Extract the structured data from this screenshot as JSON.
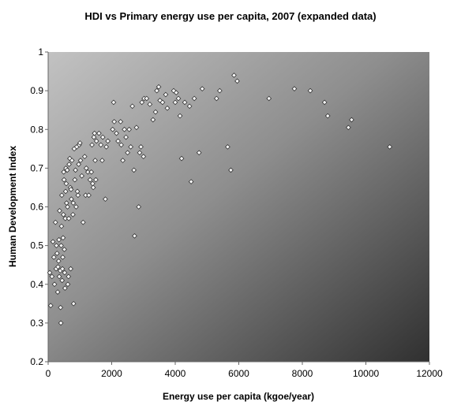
{
  "chart_data": {
    "type": "scatter",
    "title": "HDI vs Primary energy use per capita, 2007 (expanded data)",
    "xlabel": "Energy use per capita (kgoe/year)",
    "ylabel": "Human Development Index",
    "xlim": [
      0,
      12000
    ],
    "ylim": [
      0.2,
      1
    ],
    "xticks": [
      "0",
      "2000",
      "4000",
      "6000",
      "8000",
      "10000",
      "12000"
    ],
    "yticks": [
      "0.2",
      "0.3",
      "0.4",
      "0.5",
      "0.6",
      "0.7",
      "0.8",
      "0.9",
      "1"
    ],
    "grid": false,
    "legend": "none",
    "background": "gradient-gray",
    "marker": "diamond-white",
    "points": [
      [
        50,
        0.43
      ],
      [
        80,
        0.345
      ],
      [
        120,
        0.42
      ],
      [
        150,
        0.51
      ],
      [
        180,
        0.47
      ],
      [
        200,
        0.4
      ],
      [
        230,
        0.56
      ],
      [
        250,
        0.44
      ],
      [
        260,
        0.5
      ],
      [
        280,
        0.48
      ],
      [
        300,
        0.38
      ],
      [
        310,
        0.445
      ],
      [
        330,
        0.46
      ],
      [
        340,
        0.515
      ],
      [
        350,
        0.42
      ],
      [
        360,
        0.59
      ],
      [
        380,
        0.435
      ],
      [
        390,
        0.34
      ],
      [
        400,
        0.3
      ],
      [
        410,
        0.5
      ],
      [
        420,
        0.55
      ],
      [
        430,
        0.63
      ],
      [
        440,
        0.41
      ],
      [
        450,
        0.44
      ],
      [
        460,
        0.47
      ],
      [
        470,
        0.52
      ],
      [
        480,
        0.58
      ],
      [
        490,
        0.69
      ],
      [
        500,
        0.67
      ],
      [
        510,
        0.49
      ],
      [
        520,
        0.43
      ],
      [
        530,
        0.39
      ],
      [
        540,
        0.57
      ],
      [
        550,
        0.64
      ],
      [
        560,
        0.7
      ],
      [
        570,
        0.66
      ],
      [
        580,
        0.61
      ],
      [
        600,
        0.695
      ],
      [
        610,
        0.6
      ],
      [
        620,
        0.4
      ],
      [
        640,
        0.42
      ],
      [
        650,
        0.57
      ],
      [
        660,
        0.71
      ],
      [
        680,
        0.725
      ],
      [
        700,
        0.65
      ],
      [
        710,
        0.44
      ],
      [
        720,
        0.645
      ],
      [
        730,
        0.62
      ],
      [
        750,
        0.72
      ],
      [
        780,
        0.58
      ],
      [
        790,
        0.61
      ],
      [
        800,
        0.35
      ],
      [
        820,
        0.75
      ],
      [
        840,
        0.67
      ],
      [
        860,
        0.695
      ],
      [
        880,
        0.6
      ],
      [
        900,
        0.755
      ],
      [
        920,
        0.64
      ],
      [
        940,
        0.63
      ],
      [
        960,
        0.71
      ],
      [
        980,
        0.76
      ],
      [
        1000,
        0.765
      ],
      [
        1020,
        0.72
      ],
      [
        1060,
        0.68
      ],
      [
        1100,
        0.56
      ],
      [
        1150,
        0.73
      ],
      [
        1180,
        0.63
      ],
      [
        1200,
        0.7
      ],
      [
        1250,
        0.69
      ],
      [
        1280,
        0.63
      ],
      [
        1320,
        0.67
      ],
      [
        1360,
        0.69
      ],
      [
        1380,
        0.76
      ],
      [
        1400,
        0.66
      ],
      [
        1420,
        0.65
      ],
      [
        1440,
        0.78
      ],
      [
        1460,
        0.79
      ],
      [
        1480,
        0.72
      ],
      [
        1500,
        0.67
      ],
      [
        1520,
        0.77
      ],
      [
        1600,
        0.79
      ],
      [
        1660,
        0.76
      ],
      [
        1700,
        0.72
      ],
      [
        1720,
        0.78
      ],
      [
        1800,
        0.62
      ],
      [
        1830,
        0.755
      ],
      [
        1880,
        0.77
      ],
      [
        2030,
        0.8
      ],
      [
        2060,
        0.87
      ],
      [
        2080,
        0.82
      ],
      [
        2150,
        0.79
      ],
      [
        2200,
        0.77
      ],
      [
        2280,
        0.82
      ],
      [
        2300,
        0.76
      ],
      [
        2350,
        0.72
      ],
      [
        2400,
        0.8
      ],
      [
        2450,
        0.78
      ],
      [
        2500,
        0.74
      ],
      [
        2550,
        0.8
      ],
      [
        2600,
        0.755
      ],
      [
        2650,
        0.86
      ],
      [
        2700,
        0.695
      ],
      [
        2720,
        0.525
      ],
      [
        2780,
        0.805
      ],
      [
        2850,
        0.6
      ],
      [
        2880,
        0.74
      ],
      [
        2920,
        0.755
      ],
      [
        2950,
        0.87
      ],
      [
        3000,
        0.73
      ],
      [
        3020,
        0.88
      ],
      [
        3100,
        0.88
      ],
      [
        3200,
        0.865
      ],
      [
        3300,
        0.825
      ],
      [
        3380,
        0.845
      ],
      [
        3420,
        0.9
      ],
      [
        3480,
        0.91
      ],
      [
        3520,
        0.875
      ],
      [
        3600,
        0.87
      ],
      [
        3700,
        0.89
      ],
      [
        3750,
        0.855
      ],
      [
        3950,
        0.9
      ],
      [
        4000,
        0.87
      ],
      [
        4030,
        0.895
      ],
      [
        4100,
        0.88
      ],
      [
        4150,
        0.835
      ],
      [
        4200,
        0.725
      ],
      [
        4300,
        0.87
      ],
      [
        4450,
        0.86
      ],
      [
        4500,
        0.665
      ],
      [
        4600,
        0.88
      ],
      [
        4750,
        0.74
      ],
      [
        4850,
        0.905
      ],
      [
        5300,
        0.88
      ],
      [
        5400,
        0.9
      ],
      [
        5650,
        0.755
      ],
      [
        5750,
        0.695
      ],
      [
        5850,
        0.94
      ],
      [
        5950,
        0.925
      ],
      [
        6950,
        0.88
      ],
      [
        7750,
        0.905
      ],
      [
        8250,
        0.9
      ],
      [
        8700,
        0.87
      ],
      [
        8800,
        0.835
      ],
      [
        9450,
        0.805
      ],
      [
        9550,
        0.825
      ],
      [
        10750,
        0.755
      ]
    ]
  }
}
